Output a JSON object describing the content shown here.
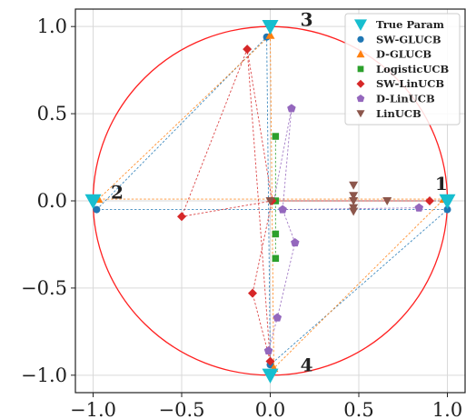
{
  "chart_data": {
    "type": "scatter",
    "xlim": [
      -1.1,
      1.1
    ],
    "ylim": [
      -1.1,
      1.1
    ],
    "grid": true,
    "legend_position": "top-right",
    "x_ticks": [
      {
        "value": -1.0,
        "label": "−1.0"
      },
      {
        "value": -0.5,
        "label": "−0.5"
      },
      {
        "value": 0.0,
        "label": "0.0"
      },
      {
        "value": 0.5,
        "label": "0.5"
      },
      {
        "value": 1.0,
        "label": "1.0"
      }
    ],
    "y_ticks": [
      {
        "value": 1.0,
        "label": "1.0"
      },
      {
        "value": 0.5,
        "label": "0.5"
      },
      {
        "value": 0.0,
        "label": "0.0"
      },
      {
        "value": -0.5,
        "label": "−0.5"
      },
      {
        "value": -1.0,
        "label": "−1.0"
      }
    ],
    "circle": {
      "radius": 1.0,
      "color": "#ff2020"
    },
    "annotations": [
      {
        "text": "1",
        "x": 0.93,
        "y": 0.1
      },
      {
        "text": "2",
        "x": -0.9,
        "y": 0.05
      },
      {
        "text": "3",
        "x": 0.17,
        "y": 1.04
      },
      {
        "text": "4",
        "x": 0.17,
        "y": -0.94
      }
    ],
    "series": [
      {
        "name": "True Param",
        "marker": "triangle-down",
        "color": "#17becf",
        "points": [
          [
            1.0,
            0.0
          ],
          [
            -1.0,
            0.0
          ],
          [
            0.0,
            1.0
          ],
          [
            0.0,
            -1.0
          ]
        ],
        "paths": []
      },
      {
        "name": "SW-GLUCB",
        "marker": "circle",
        "color": "#1f77b4",
        "points": [
          [
            1.0,
            -0.05
          ],
          [
            -0.98,
            -0.05
          ],
          [
            -0.02,
            0.94
          ],
          [
            0.0,
            -0.94
          ]
        ],
        "paths": [
          [
            [
              -0.98,
              -0.05
            ],
            [
              -0.02,
              0.94
            ],
            [
              0.0,
              -0.94
            ],
            [
              1.0,
              -0.05
            ],
            [
              -0.98,
              -0.05
            ]
          ]
        ]
      },
      {
        "name": "D-GLUCB",
        "marker": "triangle-up",
        "color": "#ff7f0e",
        "points": [
          [
            0.98,
            0.01
          ],
          [
            -0.97,
            0.01
          ],
          [
            0.0,
            0.95
          ],
          [
            0.02,
            -0.96
          ]
        ],
        "paths": [
          [
            [
              -0.97,
              0.01
            ],
            [
              0.0,
              0.95
            ],
            [
              0.02,
              -0.96
            ],
            [
              0.98,
              0.01
            ],
            [
              -0.97,
              0.01
            ]
          ]
        ]
      },
      {
        "name": "LogisticUCB",
        "marker": "square",
        "color": "#2ca02c",
        "points": [
          [
            0.03,
            0.37
          ],
          [
            0.03,
            0.0
          ],
          [
            0.03,
            -0.19
          ],
          [
            0.03,
            -0.33
          ]
        ],
        "paths": [
          [
            [
              0.03,
              0.37
            ],
            [
              0.03,
              -0.33
            ]
          ]
        ]
      },
      {
        "name": "SW-LinUCB",
        "marker": "diamond",
        "color": "#d62728",
        "points": [
          [
            0.9,
            0.0
          ],
          [
            -0.5,
            -0.09
          ],
          [
            -0.13,
            0.87
          ],
          [
            -0.1,
            -0.53
          ],
          [
            0.0,
            -0.92
          ],
          [
            0.01,
            0.0
          ]
        ],
        "paths": [
          [
            [
              0.9,
              0.0
            ],
            [
              0.01,
              0.0
            ],
            [
              -0.13,
              0.87
            ],
            [
              -0.5,
              -0.09
            ],
            [
              0.01,
              0.0
            ],
            [
              -0.1,
              -0.53
            ],
            [
              0.0,
              -0.92
            ],
            [
              -0.13,
              0.87
            ]
          ]
        ]
      },
      {
        "name": "D-LinUCB",
        "marker": "pentagon",
        "color": "#9467bd",
        "points": [
          [
            0.84,
            -0.04
          ],
          [
            0.12,
            0.53
          ],
          [
            0.07,
            -0.05
          ],
          [
            0.14,
            -0.24
          ],
          [
            0.04,
            -0.67
          ],
          [
            -0.01,
            -0.86
          ]
        ],
        "paths": [
          [
            [
              0.84,
              -0.04
            ],
            [
              0.07,
              -0.05
            ]
          ],
          [
            [
              0.02,
              0.0
            ],
            [
              0.12,
              0.53
            ],
            [
              0.07,
              -0.05
            ],
            [
              0.14,
              -0.24
            ],
            [
              0.04,
              -0.67
            ],
            [
              -0.01,
              -0.86
            ]
          ]
        ]
      },
      {
        "name": "LinUCB",
        "marker": "triangle-down",
        "color": "#8c564b",
        "points": [
          [
            0.47,
            0.09
          ],
          [
            0.47,
            0.03
          ],
          [
            0.47,
            0.0
          ],
          [
            0.47,
            -0.04
          ],
          [
            0.47,
            -0.06
          ],
          [
            0.66,
            0.0
          ],
          [
            0.0,
            0.0
          ]
        ],
        "paths": [
          [
            [
              0.0,
              0.0
            ],
            [
              0.97,
              0.0
            ]
          ]
        ]
      }
    ]
  }
}
